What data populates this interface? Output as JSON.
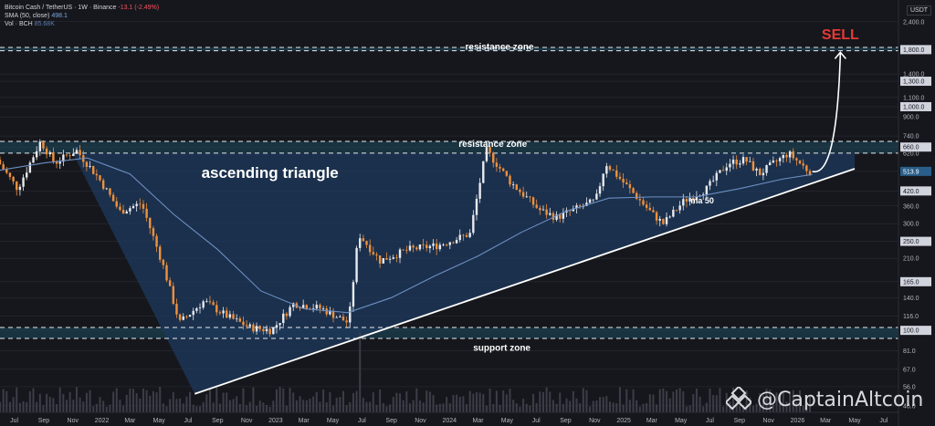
{
  "legend": {
    "symbol_line": "Bitcoin Cash / TetherUS · 1W · Binance",
    "change": "-13.1 (-2.49%)",
    "sma_label": "SMA (50, close)",
    "sma_value": "498.1",
    "vol_label": "Vol · BCH",
    "vol_value": "85.68K"
  },
  "currency": "USDT",
  "watermark": "@CaptainAltcoin",
  "colors": {
    "background": "#16171c",
    "up": "#e8eaf0",
    "down": "#f0913c",
    "ma": "#6d8fc4",
    "triangle_fill": "#1d3a5c",
    "zone_fill": "#1e4a5e",
    "sell": "#e53935",
    "axis_text": "#b2b5be",
    "grid": "#2a2d36"
  },
  "chart_data": {
    "type": "candlestick",
    "title": "",
    "scale": "log",
    "ylim": [
      43,
      3000
    ],
    "y_ticks": [
      "2,400.0",
      "1,800.0",
      "1,400.0",
      "1,300.0",
      "1,100.0",
      "1,000.0",
      "900.0",
      "740.0",
      "660.0",
      "620.0",
      "513.9",
      "420.0",
      "360.0",
      "300.0",
      "250.0",
      "210.0",
      "165.0",
      "140.0",
      "116.0",
      "100.0",
      "81.0",
      "67.0",
      "56.0",
      "46.0"
    ],
    "y_tick_values": [
      2400,
      1800,
      1400,
      1300,
      1100,
      1000,
      900,
      740,
      660,
      620,
      513.9,
      420,
      360,
      300,
      250,
      210,
      165,
      140,
      116,
      100,
      81,
      67,
      56,
      46
    ],
    "boxed_ticks": [
      "1,800.0",
      "1,300.0",
      "1,000.0",
      "660.0",
      "420.0",
      "250.0",
      "165.0",
      "100.0"
    ],
    "current_price": "513.9",
    "x_ticks": [
      "Jul",
      "Sep",
      "Nov",
      "2022",
      "Mar",
      "May",
      "Jul",
      "Sep",
      "Nov",
      "2023",
      "Mar",
      "May",
      "Jul",
      "Sep",
      "Nov",
      "2024",
      "Mar",
      "May",
      "Jul",
      "Sep",
      "Nov",
      "2025",
      "Mar",
      "May",
      "Jul",
      "Sep",
      "Nov",
      "2026",
      "Mar",
      "May",
      "Jul"
    ],
    "x_tick_dates": [
      "2021-07-01",
      "2021-09-01",
      "2021-11-01",
      "2022-01-01",
      "2022-03-01",
      "2022-05-01",
      "2022-07-01",
      "2022-09-01",
      "2022-11-01",
      "2023-01-01",
      "2023-03-01",
      "2023-05-01",
      "2023-07-01",
      "2023-09-01",
      "2023-11-01",
      "2024-01-01",
      "2024-03-01",
      "2024-05-01",
      "2024-07-01",
      "2024-09-01",
      "2024-11-01",
      "2025-01-01",
      "2025-03-01",
      "2025-05-01",
      "2025-07-01",
      "2025-09-01",
      "2025-11-01",
      "2026-01-01",
      "2026-03-01",
      "2026-05-01",
      "2026-07-01"
    ],
    "x_range": [
      "2021-06-01",
      "2026-08-01"
    ],
    "price_path": [
      [
        "2021-06-01",
        580
      ],
      [
        "2021-07-15",
        430
      ],
      [
        "2021-09-01",
        700
      ],
      [
        "2021-10-01",
        560
      ],
      [
        "2021-11-15",
        640
      ],
      [
        "2022-01-01",
        480
      ],
      [
        "2022-02-15",
        340
      ],
      [
        "2022-04-01",
        370
      ],
      [
        "2022-05-15",
        200
      ],
      [
        "2022-06-20",
        108
      ],
      [
        "2022-08-10",
        135
      ],
      [
        "2022-09-30",
        115
      ],
      [
        "2022-11-15",
        103
      ],
      [
        "2022-12-31",
        100
      ],
      [
        "2023-02-15",
        132
      ],
      [
        "2023-04-15",
        125
      ],
      [
        "2023-06-10",
        108
      ],
      [
        "2023-07-01",
        270
      ],
      [
        "2023-08-15",
        205
      ],
      [
        "2023-10-15",
        230
      ],
      [
        "2023-12-15",
        240
      ],
      [
        "2024-02-20",
        270
      ],
      [
        "2024-03-25",
        640
      ],
      [
        "2024-05-15",
        460
      ],
      [
        "2024-07-15",
        345
      ],
      [
        "2024-08-20",
        320
      ],
      [
        "2024-10-01",
        350
      ],
      [
        "2024-11-10",
        380
      ],
      [
        "2024-12-01",
        560
      ],
      [
        "2025-01-15",
        440
      ],
      [
        "2025-03-10",
        330
      ],
      [
        "2025-04-01",
        300
      ],
      [
        "2025-05-15",
        380
      ],
      [
        "2025-07-01",
        430
      ],
      [
        "2025-08-15",
        560
      ],
      [
        "2025-09-20",
        580
      ],
      [
        "2025-10-20",
        500
      ],
      [
        "2025-11-20",
        560
      ],
      [
        "2025-12-20",
        620
      ],
      [
        "2026-02-01",
        513.9
      ]
    ],
    "sma": {
      "name": "ma 50",
      "points": [
        [
          "2021-06-01",
          520
        ],
        [
          "2021-09-01",
          560
        ],
        [
          "2021-12-01",
          590
        ],
        [
          "2022-03-01",
          500
        ],
        [
          "2022-06-01",
          330
        ],
        [
          "2022-09-01",
          230
        ],
        [
          "2022-12-01",
          150
        ],
        [
          "2023-03-01",
          125
        ],
        [
          "2023-06-01",
          120
        ],
        [
          "2023-09-01",
          140
        ],
        [
          "2023-12-01",
          175
        ],
        [
          "2024-03-01",
          215
        ],
        [
          "2024-06-01",
          275
        ],
        [
          "2024-09-01",
          340
        ],
        [
          "2024-12-01",
          390
        ],
        [
          "2025-03-01",
          395
        ],
        [
          "2025-06-01",
          395
        ],
        [
          "2025-09-01",
          430
        ],
        [
          "2025-12-01",
          475
        ],
        [
          "2026-02-01",
          498.1
        ]
      ]
    },
    "volume_peak_date": "2023-06-26",
    "annotations": [
      {
        "text": "resistance zone",
        "date": "2024-04-15",
        "price": 1800
      },
      {
        "text": "resistance zone",
        "date": "2024-04-01",
        "price": 660
      },
      {
        "text": "ascending triangle",
        "date": "2022-12-20",
        "price": 480
      },
      {
        "text": "support zone",
        "date": "2024-04-20",
        "price": 81
      },
      {
        "text": "ma 50",
        "date": "2025-06-15",
        "price": 370
      },
      {
        "text": "SELL",
        "date": "2026-04-01",
        "price": 2000
      }
    ],
    "zones": [
      {
        "name": "resistance zone",
        "low": 1780,
        "high": 1840
      },
      {
        "name": "resistance zone",
        "low": 620,
        "high": 700
      },
      {
        "name": "support zone",
        "low": 92,
        "high": 103
      }
    ],
    "trendline": [
      [
        "2022-07-15",
        52
      ],
      [
        "2026-05-01",
        528
      ]
    ],
    "triangle": [
      [
        "2021-11-01",
        620
      ],
      [
        "2026-05-01",
        620
      ],
      [
        "2026-05-01",
        528
      ],
      [
        "2022-07-15",
        52
      ]
    ],
    "projection_arrow": [
      [
        "2026-02-01",
        513.9
      ],
      [
        "2026-04-01",
        1750
      ]
    ]
  }
}
